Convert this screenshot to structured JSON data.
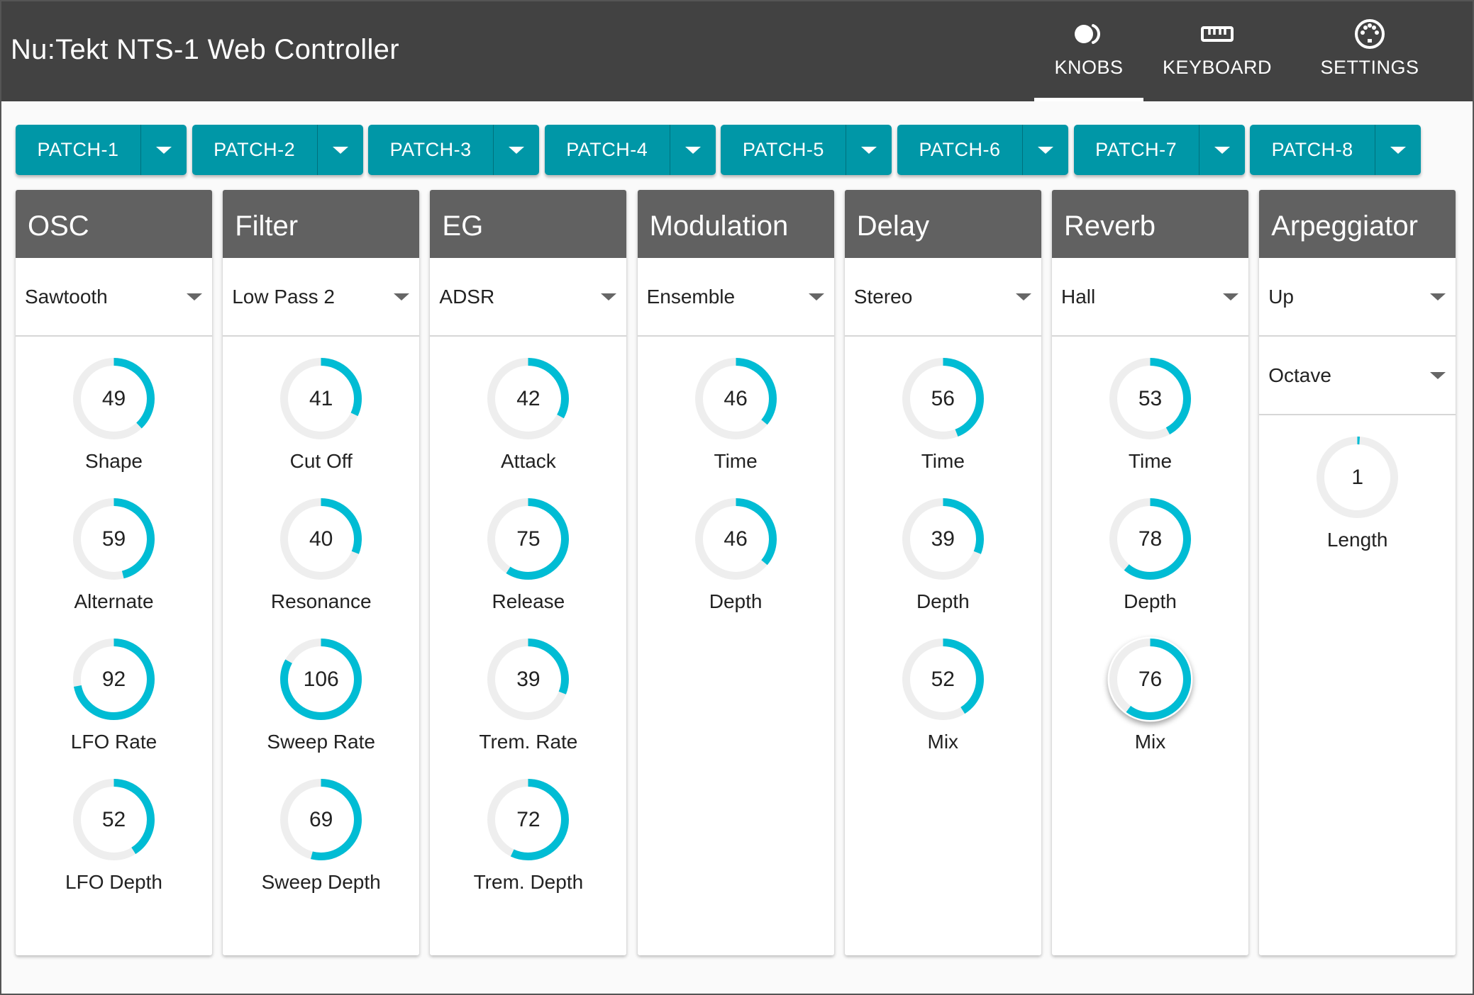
{
  "app": {
    "title": "Nu:Tekt NTS-1 Web Controller"
  },
  "nav": {
    "tabs": [
      {
        "label": "KNOBS",
        "icon": "knobs-icon",
        "active": true
      },
      {
        "label": "KEYBOARD",
        "icon": "keyboard-icon",
        "active": false
      },
      {
        "label": "SETTINGS",
        "icon": "midi-port-icon",
        "active": false
      }
    ]
  },
  "patches": [
    {
      "label": "PATCH-1"
    },
    {
      "label": "PATCH-2"
    },
    {
      "label": "PATCH-3"
    },
    {
      "label": "PATCH-4"
    },
    {
      "label": "PATCH-5"
    },
    {
      "label": "PATCH-6"
    },
    {
      "label": "PATCH-7"
    },
    {
      "label": "PATCH-8"
    }
  ],
  "colors": {
    "accent": "#00bcd4",
    "patch_button": "#0097a7",
    "header": "#424242",
    "panel_header": "#616161",
    "knob_track": "#eeeeee"
  },
  "panels": [
    {
      "title": "OSC",
      "selects": [
        "Sawtooth"
      ],
      "knobs": [
        {
          "label": "Shape",
          "value": "49",
          "fraction": 0.38
        },
        {
          "label": "Alternate",
          "value": "59",
          "fraction": 0.46
        },
        {
          "label": "LFO Rate",
          "value": "92",
          "fraction": 0.72
        },
        {
          "label": "LFO Depth",
          "value": "52",
          "fraction": 0.41
        }
      ]
    },
    {
      "title": "Filter",
      "selects": [
        "Low Pass 2"
      ],
      "knobs": [
        {
          "label": "Cut Off",
          "value": "41",
          "fraction": 0.32
        },
        {
          "label": "Resonance",
          "value": "40",
          "fraction": 0.31
        },
        {
          "label": "Sweep Rate",
          "value": "106",
          "fraction": 0.83
        },
        {
          "label": "Sweep Depth",
          "value": "69",
          "fraction": 0.54
        }
      ]
    },
    {
      "title": "EG",
      "selects": [
        "ADSR"
      ],
      "knobs": [
        {
          "label": "Attack",
          "value": "42",
          "fraction": 0.33
        },
        {
          "label": "Release",
          "value": "75",
          "fraction": 0.59
        },
        {
          "label": "Trem. Rate",
          "value": "39",
          "fraction": 0.31
        },
        {
          "label": "Trem. Depth",
          "value": "72",
          "fraction": 0.57
        }
      ]
    },
    {
      "title": "Modulation",
      "selects": [
        "Ensemble"
      ],
      "knobs": [
        {
          "label": "Time",
          "value": "46",
          "fraction": 0.36
        },
        {
          "label": "Depth",
          "value": "46",
          "fraction": 0.36
        }
      ]
    },
    {
      "title": "Delay",
      "selects": [
        "Stereo"
      ],
      "knobs": [
        {
          "label": "Time",
          "value": "56",
          "fraction": 0.44
        },
        {
          "label": "Depth",
          "value": "39",
          "fraction": 0.31
        },
        {
          "label": "Mix",
          "value": "52",
          "fraction": 0.41
        }
      ]
    },
    {
      "title": "Reverb",
      "selects": [
        "Hall"
      ],
      "knobs": [
        {
          "label": "Time",
          "value": "53",
          "fraction": 0.42
        },
        {
          "label": "Depth",
          "value": "78",
          "fraction": 0.61
        },
        {
          "label": "Mix",
          "value": "76",
          "fraction": 0.6,
          "focused": true
        }
      ]
    },
    {
      "title": "Arpeggiator",
      "selects": [
        "Up",
        "Octave"
      ],
      "knobs": [
        {
          "label": "Length",
          "value": "1",
          "fraction": 0.01
        }
      ]
    }
  ]
}
